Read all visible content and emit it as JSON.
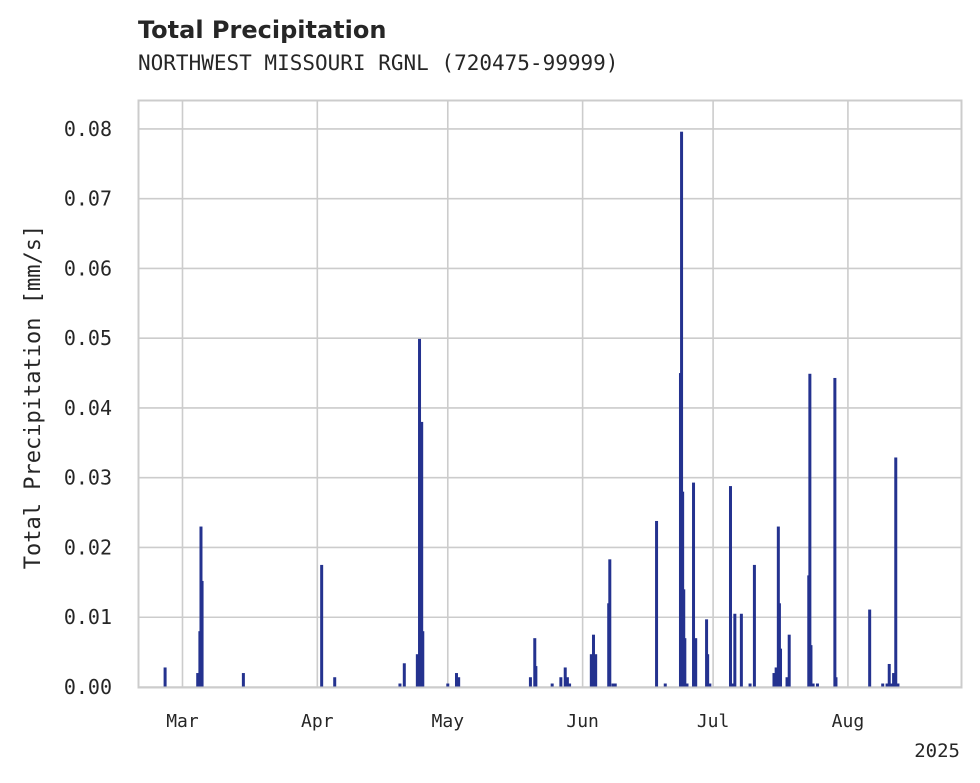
{
  "chart_data": {
    "type": "bar",
    "title": "Total Precipitation",
    "subtitle": "NORTHWEST MISSOURI RGNL (720475-99999)",
    "ylabel": "Total Precipitation [mm/s]",
    "xlabel": "",
    "year_label": "2025",
    "ylim": [
      0,
      0.084
    ],
    "yticks": [
      "0.00",
      "0.01",
      "0.02",
      "0.03",
      "0.04",
      "0.05",
      "0.06",
      "0.07",
      "0.08"
    ],
    "xlim": [
      "2025-02-19",
      "2025-08-27"
    ],
    "xticks": [
      {
        "label": "Mar",
        "date": "2025-03-01"
      },
      {
        "label": "Apr",
        "date": "2025-04-01"
      },
      {
        "label": "May",
        "date": "2025-05-01"
      },
      {
        "label": "Jun",
        "date": "2025-06-01"
      },
      {
        "label": "Jul",
        "date": "2025-07-01"
      },
      {
        "label": "Aug",
        "date": "2025-08-01"
      }
    ],
    "grid": true,
    "bar_color": "#24328f",
    "series": [
      {
        "x": [
          "2025-02-25T00:00",
          "2025-03-04T12:00",
          "2025-03-05T00:00",
          "2025-03-05T06:00",
          "2025-03-05T12:00",
          "2025-03-15T00:00",
          "2025-04-02T00:00",
          "2025-04-05T00:00",
          "2025-04-20T00:00",
          "2025-04-21T00:00",
          "2025-04-24T00:00",
          "2025-04-24T12:00",
          "2025-04-25T00:00",
          "2025-04-25T06:00",
          "2025-05-01T00:00",
          "2025-05-03T00:00",
          "2025-05-03T12:00",
          "2025-05-20T00:00",
          "2025-05-21T00:00",
          "2025-05-21T06:00",
          "2025-05-25T00:00",
          "2025-05-27T00:00",
          "2025-05-28T00:00",
          "2025-05-28T12:00",
          "2025-05-29T00:00",
          "2025-06-03T00:00",
          "2025-06-03T12:00",
          "2025-06-04T00:00",
          "2025-06-07T00:00",
          "2025-06-07T06:00",
          "2025-06-08T00:00",
          "2025-06-08T12:00",
          "2025-06-18T00:00",
          "2025-06-20T00:00",
          "2025-06-23T12:00",
          "2025-06-23T18:00",
          "2025-06-24T00:00",
          "2025-06-24T06:00",
          "2025-06-24T12:00",
          "2025-06-25T00:00",
          "2025-06-26T12:00",
          "2025-06-27T00:00",
          "2025-06-29T12:00",
          "2025-06-29T18:00",
          "2025-06-30T06:00",
          "2025-07-05T00:00",
          "2025-07-05T12:00",
          "2025-07-06T00:00",
          "2025-07-07T12:00",
          "2025-07-09T12:00",
          "2025-07-10T12:00",
          "2025-07-15T00:00",
          "2025-07-15T12:00",
          "2025-07-16T00:00",
          "2025-07-16T06:00",
          "2025-07-16T12:00",
          "2025-07-18T00:00",
          "2025-07-18T12:00",
          "2025-07-23T00:00",
          "2025-07-23T06:00",
          "2025-07-23T12:00",
          "2025-07-24T00:00",
          "2025-07-25T00:00",
          "2025-07-29T00:00",
          "2025-07-29T06:00",
          "2025-08-06T00:00",
          "2025-08-09T00:00",
          "2025-08-10T00:00",
          "2025-08-10T12:00",
          "2025-08-11T00:00",
          "2025-08-11T12:00",
          "2025-08-12T00:00",
          "2025-08-12T12:00"
        ],
        "values": [
          0.0028,
          0.002,
          0.008,
          0.023,
          0.0152,
          0.002,
          0.0175,
          0.0014,
          0.0005,
          0.0034,
          0.0047,
          0.0499,
          0.038,
          0.008,
          0.0005,
          0.002,
          0.0014,
          0.0014,
          0.007,
          0.003,
          0.0005,
          0.0014,
          0.0028,
          0.0014,
          0.0005,
          0.0047,
          0.0075,
          0.0047,
          0.012,
          0.0183,
          0.0005,
          0.0005,
          0.0238,
          0.0005,
          0.045,
          0.0796,
          0.028,
          0.014,
          0.007,
          0.0005,
          0.0293,
          0.007,
          0.0097,
          0.0047,
          0.0005,
          0.0288,
          0.0005,
          0.0105,
          0.0105,
          0.0005,
          0.0175,
          0.002,
          0.0028,
          0.023,
          0.012,
          0.0055,
          0.0014,
          0.0075,
          0.016,
          0.0449,
          0.006,
          0.0005,
          0.0005,
          0.0443,
          0.0014,
          0.0111,
          0.0005,
          0.0005,
          0.0033,
          0.0005,
          0.002,
          0.0329,
          0.0005
        ]
      }
    ]
  }
}
